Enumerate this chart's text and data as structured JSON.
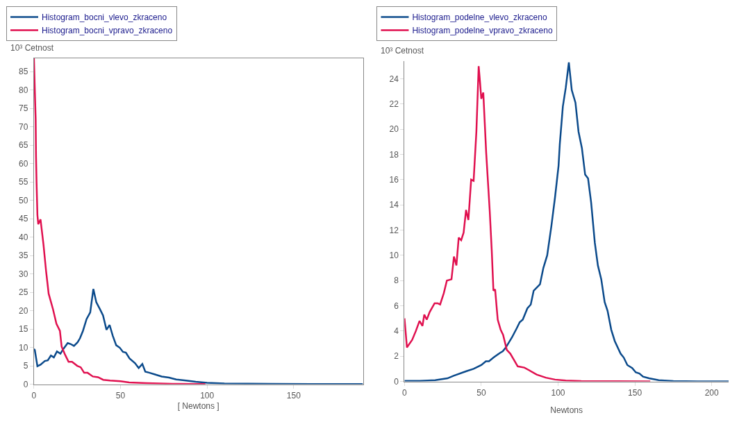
{
  "chart_data": [
    {
      "type": "line",
      "ylabel": "10³ Cetnost",
      "xlabel": "[ Newtons ]",
      "xlim": [
        0,
        190
      ],
      "ylim": [
        0,
        88.6
      ],
      "xticks": [
        0,
        50,
        100,
        150
      ],
      "yticks": [
        0,
        5,
        10,
        15,
        20,
        25,
        30,
        35,
        40,
        45,
        50,
        55,
        60,
        65,
        70,
        75,
        80,
        85
      ],
      "legend": "top",
      "grid": false,
      "series": [
        {
          "name": "Histogram_bocni_vlevo_zkraceno",
          "color": "#0b4a8b",
          "x": [
            0,
            0.5,
            2,
            3.8,
            6.3,
            8,
            9.8,
            11.5,
            13.3,
            15.3,
            17,
            19.5,
            21.3,
            23.1,
            25.2,
            26.6,
            28.3,
            30.4,
            32.5,
            34.3,
            36,
            38.1,
            39.9,
            41.9,
            43.7,
            45.5,
            47.5,
            49.6,
            51.4,
            53.1,
            55.2,
            58.4,
            60.5,
            62.6,
            64.3,
            66.8,
            69.6,
            73.8,
            78,
            82.2,
            87.8,
            93.4,
            100,
            110,
            137,
            160,
            190
          ],
          "values": [
            9.6,
            9.3,
            4.9,
            5.3,
            6.3,
            6.5,
            7.8,
            7.3,
            8.9,
            8.3,
            9.6,
            11.2,
            10.9,
            10.4,
            11.4,
            12.5,
            14.5,
            17.7,
            19.5,
            25.9,
            22.3,
            20.4,
            18.7,
            14.8,
            16.1,
            13.2,
            10.6,
            9.9,
            8.8,
            8.6,
            7,
            5.7,
            4.4,
            5.5,
            3.4,
            3.1,
            2.7,
            2.1,
            1.8,
            1.3,
            1,
            0.65,
            0.4,
            0.2,
            0.1,
            0.05,
            0.05
          ]
        },
        {
          "name": "Histogram_bocni_vpravo_zkraceno",
          "color": "#e0104f",
          "x": [
            0,
            0.5,
            1,
            1.2,
            1.5,
            2,
            2.5,
            3.8,
            5.5,
            7,
            8.5,
            11,
            13,
            15,
            16,
            18,
            20,
            22,
            25,
            27,
            29,
            31,
            34,
            37,
            40,
            44,
            50,
            55,
            65,
            80,
            99
          ],
          "values": [
            88.6,
            80,
            72,
            62,
            55,
            46,
            43.5,
            44.8,
            38,
            30.8,
            24.6,
            20.4,
            16.4,
            14.5,
            10.2,
            8,
            6.1,
            6.1,
            5,
            4.6,
            3.1,
            3.1,
            2.1,
            1.9,
            1.2,
            1,
            0.8,
            0.5,
            0.3,
            0.1,
            0.05
          ]
        }
      ]
    },
    {
      "type": "line",
      "ylabel": "10³ Cetnost",
      "xlabel": "Newtons",
      "xlim": [
        0,
        211
      ],
      "ylim": [
        0,
        25.4
      ],
      "xticks": [
        0,
        50,
        100,
        150,
        200
      ],
      "yticks": [
        0,
        2,
        4,
        6,
        8,
        10,
        12,
        14,
        16,
        18,
        20,
        22,
        24
      ],
      "legend": "top",
      "grid": false,
      "series": [
        {
          "name": "Histogram_podelne_vlevo_zkraceno",
          "color": "#0b4a8b",
          "x": [
            0,
            10,
            20,
            28,
            32,
            40,
            45,
            50,
            53,
            55,
            58,
            62,
            64,
            66,
            70,
            73,
            75,
            77,
            80,
            82.2,
            84.1,
            88.2,
            90.4,
            92.9,
            95.6,
            98,
            100.3,
            101.1,
            103.1,
            105,
            107,
            108.9,
            111.3,
            113.3,
            115.5,
            117.6,
            119.5,
            121.5,
            123.9,
            125.9,
            128.1,
            130.3,
            132.2,
            134.6,
            136.9,
            140.7,
            142.7,
            145.1,
            148.2,
            150.6,
            152.9,
            155.3,
            159.2,
            165.5,
            175,
            190.8,
            211
          ],
          "values": [
            0.05,
            0.05,
            0.1,
            0.25,
            0.45,
            0.8,
            1,
            1.3,
            1.6,
            1.6,
            1.9,
            2.25,
            2.4,
            2.7,
            3.5,
            4.2,
            4.7,
            4.9,
            5.8,
            6.1,
            7.2,
            7.7,
            9,
            10,
            12.3,
            14.6,
            17.1,
            18.8,
            21.8,
            23.3,
            25.3,
            23.1,
            22.1,
            19.8,
            18.5,
            16.4,
            16.1,
            14.2,
            11,
            9.2,
            8.1,
            6.3,
            5.6,
            4.1,
            3.2,
            2.2,
            1.9,
            1.3,
            1.07,
            0.72,
            0.63,
            0.38,
            0.25,
            0.1,
            0.04,
            0,
            0
          ]
        },
        {
          "name": "Histogram_podelne_vpravo_zkraceno",
          "color": "#e0104f",
          "x": [
            0,
            1.6,
            5,
            7.4,
            9.8,
            11.7,
            12.9,
            14.5,
            16.4,
            19.6,
            21.6,
            23.2,
            25.6,
            27.6,
            30.6,
            32.2,
            33.8,
            35.3,
            36.9,
            38.5,
            40.1,
            41.6,
            43.4,
            45,
            46.8,
            48.3,
            49.2,
            50,
            51.3,
            53.2,
            55.5,
            56.8,
            57.9,
            59,
            60.7,
            62.6,
            64.2,
            66.6,
            68.9,
            71.3,
            73.7,
            78,
            81,
            86,
            92,
            98,
            105,
            115,
            160
          ],
          "values": [
            5,
            2.7,
            3.3,
            4,
            4.8,
            4.4,
            5.3,
            4.9,
            5.5,
            6.2,
            6.2,
            6.1,
            7,
            8,
            8.1,
            9.9,
            9.2,
            11.4,
            11.2,
            11.8,
            13.6,
            12.8,
            16,
            15.9,
            19.8,
            25,
            23.7,
            22.4,
            22.9,
            18.1,
            13.5,
            10.4,
            7.2,
            7.3,
            4.9,
            4.1,
            3.7,
            2.5,
            2.2,
            1.7,
            1.2,
            1.1,
            0.9,
            0.55,
            0.3,
            0.15,
            0.07,
            0.03,
            0
          ]
        }
      ]
    }
  ]
}
